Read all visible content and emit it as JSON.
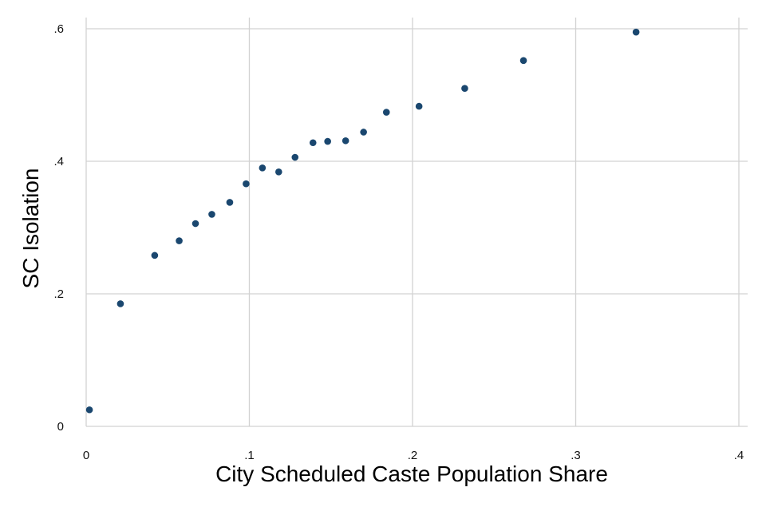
{
  "colors": {
    "marker": "#1a476f",
    "grid": "#d2d2d2",
    "background": "#ffffff"
  },
  "chart_data": {
    "type": "scatter",
    "title": "",
    "xlabel": "City Scheduled Caste Population Share",
    "ylabel": "SC Isolation",
    "xlim": [
      0,
      0.41
    ],
    "ylim": [
      0,
      0.6
    ],
    "grid": true,
    "legend": "none",
    "x_ticks": [
      {
        "value": 0,
        "label": "0"
      },
      {
        "value": 0.1,
        "label": ".1"
      },
      {
        "value": 0.2,
        "label": ".2"
      },
      {
        "value": 0.3,
        "label": ".3"
      },
      {
        "value": 0.4,
        "label": ".4"
      }
    ],
    "y_ticks": [
      {
        "value": 0,
        "label": "0"
      },
      {
        "value": 0.2,
        "label": ".2"
      },
      {
        "value": 0.4,
        "label": ".4"
      },
      {
        "value": 0.6,
        "label": ".6"
      }
    ],
    "points": [
      {
        "x": 0.002,
        "y": 0.025
      },
      {
        "x": 0.021,
        "y": 0.185
      },
      {
        "x": 0.042,
        "y": 0.258
      },
      {
        "x": 0.057,
        "y": 0.28
      },
      {
        "x": 0.067,
        "y": 0.306
      },
      {
        "x": 0.077,
        "y": 0.32
      },
      {
        "x": 0.088,
        "y": 0.338
      },
      {
        "x": 0.098,
        "y": 0.366
      },
      {
        "x": 0.108,
        "y": 0.39
      },
      {
        "x": 0.118,
        "y": 0.384
      },
      {
        "x": 0.128,
        "y": 0.406
      },
      {
        "x": 0.139,
        "y": 0.428
      },
      {
        "x": 0.148,
        "y": 0.43
      },
      {
        "x": 0.159,
        "y": 0.431
      },
      {
        "x": 0.17,
        "y": 0.444
      },
      {
        "x": 0.184,
        "y": 0.474
      },
      {
        "x": 0.204,
        "y": 0.483
      },
      {
        "x": 0.232,
        "y": 0.51
      },
      {
        "x": 0.268,
        "y": 0.552
      },
      {
        "x": 0.337,
        "y": 0.595
      }
    ]
  }
}
